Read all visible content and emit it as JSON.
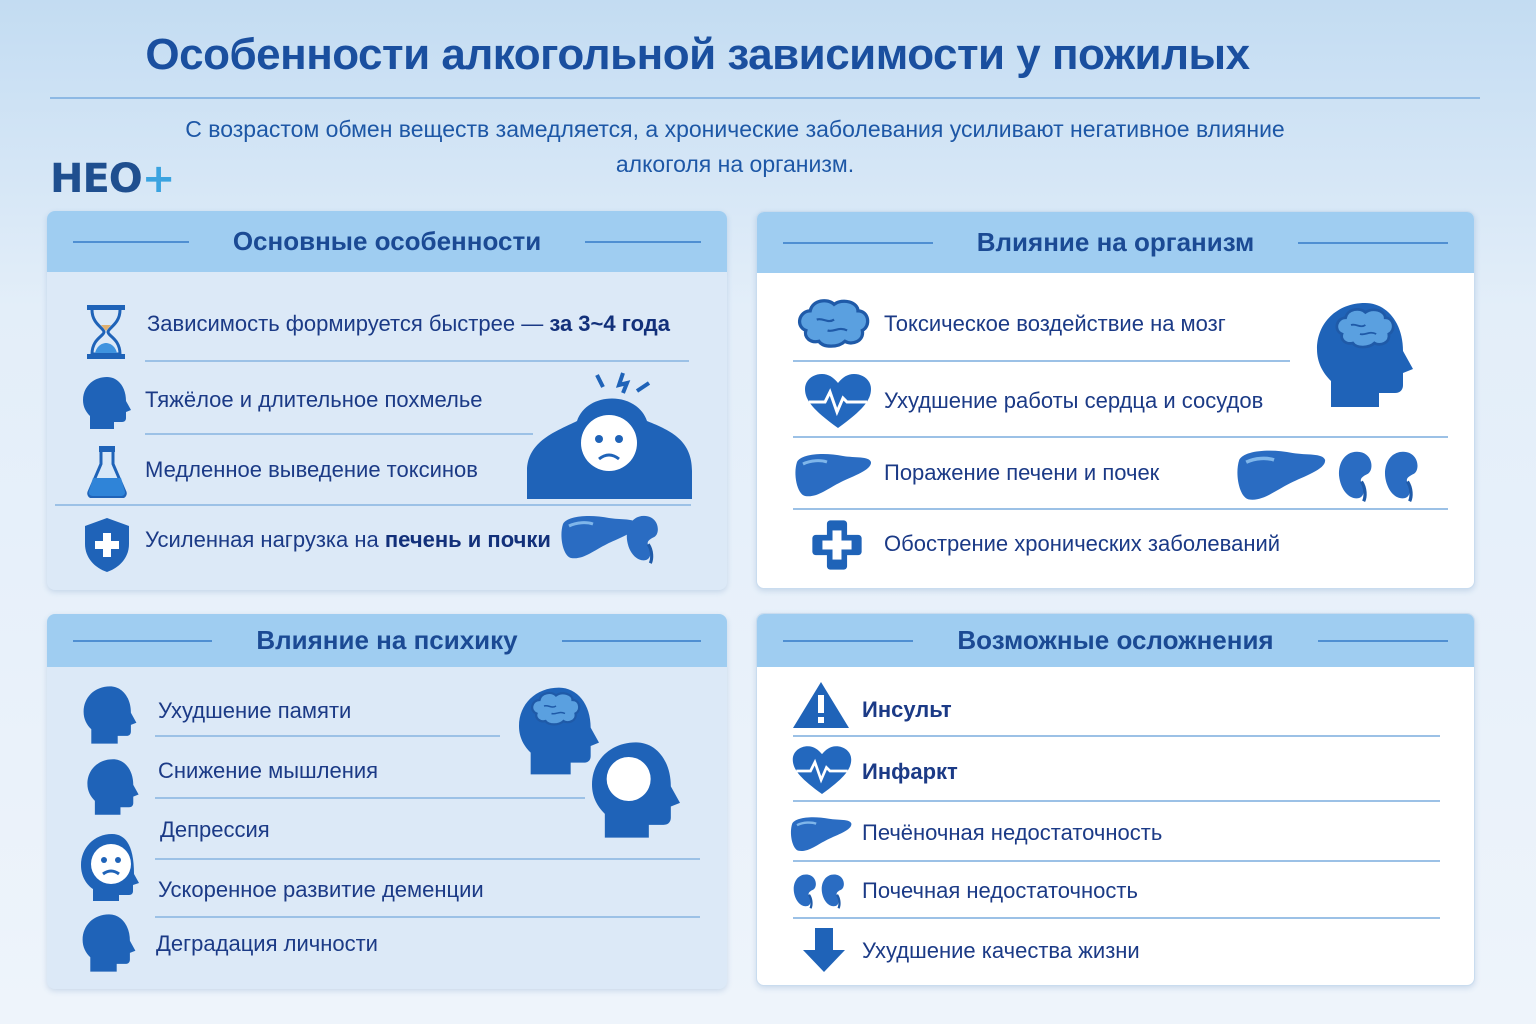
{
  "title": "Особенности алкогольной зависимости у пожилых",
  "subtitle": [
    "С возрастом обмен веществ замедляется, а хронические заболевания усиливают негативное влияние",
    "алкоголя на организм."
  ],
  "logo": {
    "text": "НЕО",
    "plus": "+"
  },
  "colors": {
    "primary": "#1a4f9f",
    "accent": "#2f7fd0",
    "header_band": "#9fcdf1"
  },
  "panels": {
    "main": {
      "title": "Основные особенности",
      "items": [
        {
          "text": "Зависимость формируется быстрее — ",
          "bold": "за 3~4 года",
          "icon": "hourglass-icon"
        },
        {
          "text": "Тяжёлое и длительное похмелье",
          "bold": "",
          "icon": "head-icon"
        },
        {
          "text": "Медленное выведение токсинов",
          "bold": "",
          "icon": "flask-icon"
        },
        {
          "text": "Усиленная нагрузка на ",
          "bold": "печень и почки",
          "icon": "shield-cross-icon"
        }
      ]
    },
    "body": {
      "title": "Влияние на организм",
      "items": [
        {
          "text": "Токсическое воздействие на мозг",
          "icon": "brain-icon"
        },
        {
          "text": "Ухудшение работы сердца и сосудов",
          "icon": "heart-pulse-icon"
        },
        {
          "text": "Поражение печени и почек",
          "icon": "liver-icon"
        },
        {
          "text": "Обострение хронических заболеваний",
          "icon": "medical-cross-icon"
        }
      ]
    },
    "psyche": {
      "title": "Влияние на психику",
      "items": [
        {
          "text": "Ухудшение памяти",
          "icon": "memory-head-icon"
        },
        {
          "text": "Снижение мышления",
          "icon": "thinking-head-icon"
        },
        {
          "text": "Депрессия",
          "icon": "sad-face-icon"
        },
        {
          "text": "Ускоренное развитие деменции",
          "icon": ""
        },
        {
          "text": "Деградация личности",
          "icon": "head-icon"
        }
      ]
    },
    "complications": {
      "title": "Возможные осложнения",
      "items": [
        {
          "text": "Инсульт",
          "bold": true,
          "icon": "warning-icon"
        },
        {
          "text": "Инфаркт",
          "bold": true,
          "icon": "heart-pulse-icon"
        },
        {
          "text": "Печёночная недостаточность",
          "bold": false,
          "icon": "liver-icon"
        },
        {
          "text": "Почечная недостаточность",
          "bold": false,
          "icon": "kidneys-icon"
        },
        {
          "text": "Ухудшение качества жизни",
          "bold": false,
          "icon": "arrow-down-icon"
        }
      ]
    }
  }
}
